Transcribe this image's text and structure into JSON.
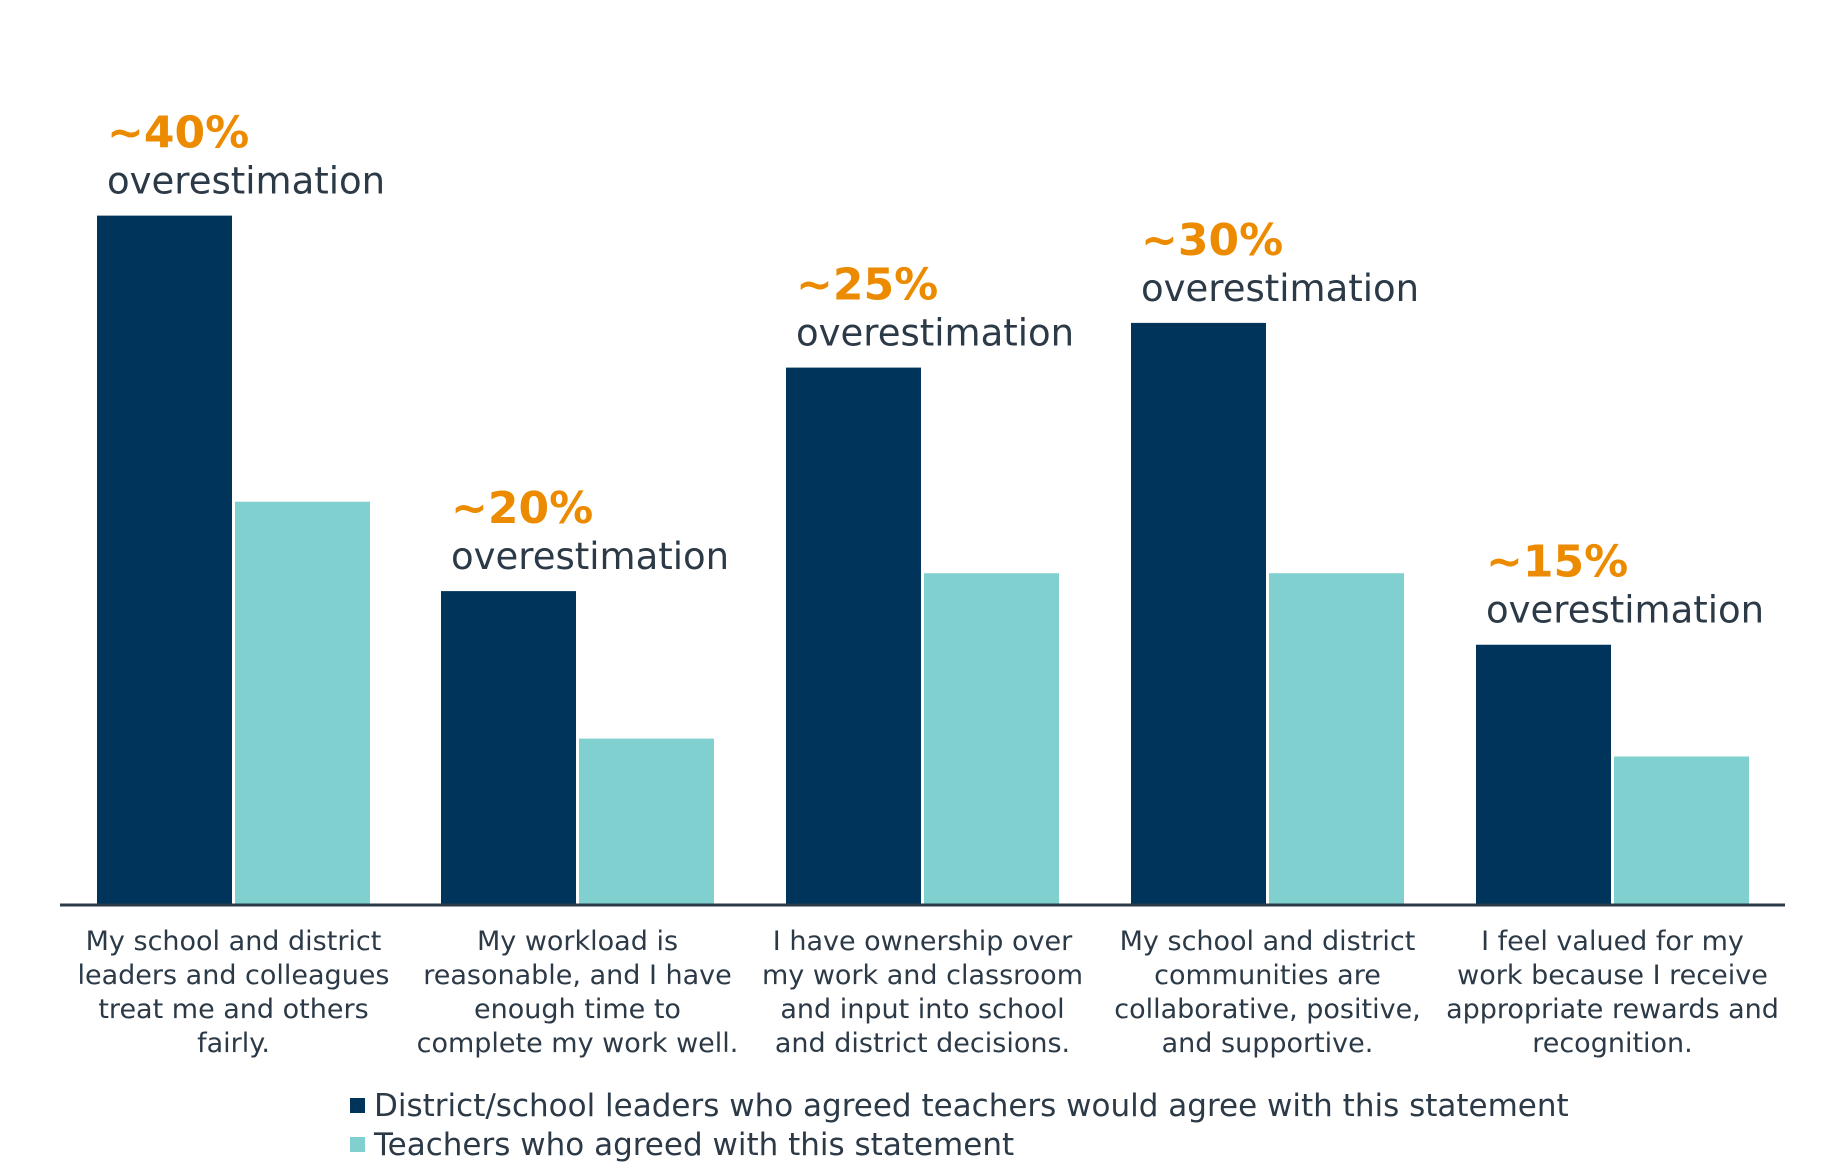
{
  "colors": {
    "leaders": "#00345a",
    "teachers": "#80d0cf",
    "annotation_pct": "#ec8b00",
    "text": "#2c3a47",
    "axis": "#2c3a47"
  },
  "chart_data": {
    "type": "bar",
    "title": "",
    "xlabel": "",
    "ylabel": "",
    "ylim": [
      0,
      100
    ],
    "grid": false,
    "legend_position": "bottom",
    "categories": [
      "My school and district leaders and colleagues treat me and others fairly.",
      "My workload is reasonable, and I have enough time to complete my work well.",
      "I have ownership over my work and classroom and input into school and district decisions.",
      "My school and district communities are collaborative, positive, and supportive.",
      "I feel valued for my work because I receive appropriate rewards and recognition."
    ],
    "category_lines": [
      [
        "My school and district",
        "leaders and colleagues",
        "treat me and others",
        "fairly."
      ],
      [
        "My workload is",
        "reasonable, and I have",
        "enough time to",
        "complete my work well."
      ],
      [
        "I have ownership over",
        "my work and classroom",
        "and input into school",
        "and district decisions."
      ],
      [
        "My school and district",
        "communities are",
        "collaborative, positive,",
        "and supportive."
      ],
      [
        "I feel valued for my",
        "work because I receive",
        "appropriate rewards and",
        "recognition."
      ]
    ],
    "series": [
      {
        "name": "District/school leaders who agreed teachers would agree with this statement",
        "values": [
          77,
          35,
          60,
          65,
          29
        ]
      },
      {
        "name": "Teachers who agreed with this statement",
        "values": [
          45,
          18.5,
          37,
          37,
          16.5
        ]
      }
    ],
    "annotations": [
      {
        "value": "~40%",
        "text": "overestimation"
      },
      {
        "value": "~20%",
        "text": "overestimation"
      },
      {
        "value": "~25%",
        "text": "overestimation"
      },
      {
        "value": "~30%",
        "text": "overestimation"
      },
      {
        "value": "~15%",
        "text": "overestimation"
      }
    ]
  }
}
